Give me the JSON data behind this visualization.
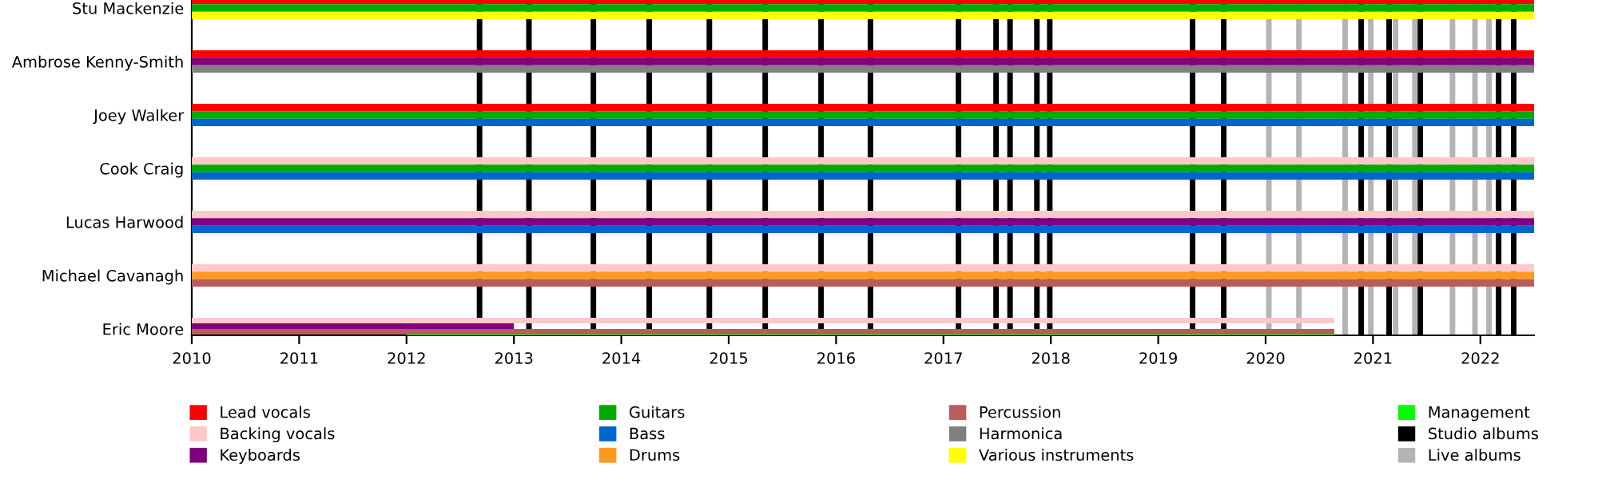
{
  "chart_data": {
    "type": "bar",
    "orientation": "horizontal",
    "categories": [
      "Stu Mackenzie",
      "Ambrose Kenny-Smith",
      "Joey Walker",
      "Cook Craig",
      "Lucas Harwood",
      "Michael Cavanagh",
      "Eric Moore"
    ],
    "series": [
      {
        "name": "Lead vocals",
        "color": "#ff0000",
        "base": [
          2010,
          2010,
          2010,
          null,
          null,
          null,
          null
        ],
        "values": [
          12.5,
          12.5,
          12.5,
          null,
          null,
          null,
          null
        ]
      },
      {
        "name": "Backing vocals",
        "color": "#ffc8c8",
        "base": [
          null,
          null,
          null,
          2010,
          2010,
          2010,
          2010
        ],
        "values": [
          null,
          null,
          null,
          12.5,
          12.5,
          12.5,
          10.64
        ]
      },
      {
        "name": "Keyboards",
        "color": "#800080",
        "base": [
          null,
          2010,
          null,
          null,
          2010,
          null,
          2010
        ],
        "values": [
          null,
          12.5,
          null,
          null,
          12.5,
          null,
          3
        ]
      },
      {
        "name": "Guitars",
        "color": "#00aa00",
        "base": [
          2010,
          null,
          2010,
          2010,
          null,
          null,
          null
        ],
        "values": [
          12.5,
          null,
          12.5,
          12.5,
          null,
          null,
          null
        ]
      },
      {
        "name": "Bass",
        "color": "#0066cc",
        "base": [
          null,
          null,
          2010,
          2010,
          2010,
          null,
          null
        ],
        "values": [
          null,
          null,
          12.5,
          12.5,
          12.5,
          null,
          null
        ]
      },
      {
        "name": "Drums",
        "color": "#ff9922",
        "base": [
          null,
          null,
          null,
          null,
          null,
          2010,
          null
        ],
        "values": [
          null,
          null,
          null,
          null,
          null,
          12.5,
          null
        ]
      },
      {
        "name": "Percussion",
        "color": "#b85c5c",
        "base": [
          null,
          null,
          null,
          null,
          null,
          2010,
          2010
        ],
        "values": [
          null,
          null,
          null,
          null,
          null,
          12.5,
          10.64
        ]
      },
      {
        "name": "Harmonica",
        "color": "#808080",
        "base": [
          null,
          2010,
          null,
          null,
          null,
          null,
          null
        ],
        "values": [
          null,
          12.5,
          null,
          null,
          null,
          null,
          null
        ]
      },
      {
        "name": "Various instruments",
        "color": "#ffff00",
        "base": [
          2010,
          null,
          null,
          null,
          null,
          null,
          null
        ],
        "values": [
          12.5,
          null,
          null,
          null,
          null,
          null,
          null
        ]
      },
      {
        "name": "Management",
        "color": "#00ff00",
        "base": [
          null,
          null,
          null,
          null,
          null,
          null,
          2012
        ],
        "values": [
          null,
          null,
          null,
          null,
          null,
          null,
          8.64
        ]
      }
    ],
    "ref_lines": [
      {
        "axis": "x",
        "value": 2012.68,
        "label": "Studio albums",
        "color": "#000000"
      },
      {
        "axis": "x",
        "value": 2013.14,
        "color": "#000000"
      },
      {
        "axis": "x",
        "value": 2013.74,
        "color": "#000000"
      },
      {
        "axis": "x",
        "value": 2014.26,
        "color": "#000000"
      },
      {
        "axis": "x",
        "value": 2014.82,
        "color": "#000000"
      },
      {
        "axis": "x",
        "value": 2015.34,
        "color": "#000000"
      },
      {
        "axis": "x",
        "value": 2015.86,
        "color": "#000000"
      },
      {
        "axis": "x",
        "value": 2016.32,
        "color": "#000000"
      },
      {
        "axis": "x",
        "value": 2017.14,
        "color": "#000000"
      },
      {
        "axis": "x",
        "value": 2017.49,
        "color": "#000000"
      },
      {
        "axis": "x",
        "value": 2017.62,
        "color": "#000000"
      },
      {
        "axis": "x",
        "value": 2017.87,
        "color": "#000000"
      },
      {
        "axis": "x",
        "value": 2017.99,
        "color": "#000000"
      },
      {
        "axis": "x",
        "value": 2019.32,
        "color": "#000000"
      },
      {
        "axis": "x",
        "value": 2019.61,
        "color": "#000000"
      },
      {
        "axis": "x",
        "value": 2020.89,
        "color": "#000000"
      },
      {
        "axis": "x",
        "value": 2021.15,
        "color": "#000000"
      },
      {
        "axis": "x",
        "value": 2021.44,
        "color": "#000000"
      },
      {
        "axis": "x",
        "value": 2022.17,
        "color": "#000000"
      },
      {
        "axis": "x",
        "value": 2022.31,
        "color": "#000000"
      },
      {
        "axis": "x",
        "value": 2020.03,
        "label": "Live albums",
        "color": "#b4b4b4"
      },
      {
        "axis": "x",
        "value": 2020.31,
        "color": "#b4b4b4"
      },
      {
        "axis": "x",
        "value": 2020.74,
        "color": "#b4b4b4"
      },
      {
        "axis": "x",
        "value": 2020.98,
        "color": "#b4b4b4"
      },
      {
        "axis": "x",
        "value": 2021.21,
        "color": "#b4b4b4"
      },
      {
        "axis": "x",
        "value": 2021.39,
        "color": "#b4b4b4"
      },
      {
        "axis": "x",
        "value": 2021.74,
        "color": "#b4b4b4"
      },
      {
        "axis": "x",
        "value": 2021.95,
        "color": "#b4b4b4"
      },
      {
        "axis": "x",
        "value": 2022.08,
        "color": "#b4b4b4"
      }
    ],
    "xlim": [
      2010,
      2022.5
    ],
    "xticks": [
      2010,
      2011,
      2012,
      2013,
      2014,
      2015,
      2016,
      2017,
      2018,
      2019,
      2020,
      2021,
      2022
    ],
    "grid": false,
    "legend": "bottom"
  }
}
